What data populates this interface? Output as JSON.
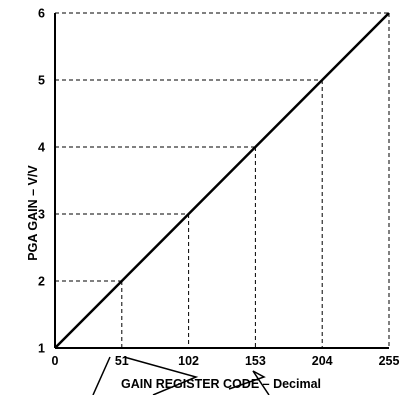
{
  "chart_data": {
    "type": "line",
    "title": "",
    "xlabel": "GAIN REGISTER CODE – Decimal",
    "ylabel": "PGA GAIN – V/V",
    "xlim": [
      0,
      255
    ],
    "ylim": [
      1,
      6
    ],
    "x_ticks": [
      0,
      51,
      102,
      153,
      204,
      255
    ],
    "y_ticks": [
      1,
      2,
      3,
      4,
      5,
      6
    ],
    "grid": "dashed reference lines at marked points",
    "series": [
      {
        "x": [
          0,
          51,
          102,
          153,
          204,
          255
        ],
        "values": [
          1,
          2,
          3,
          4,
          5,
          6
        ],
        "color": "#000000"
      }
    ],
    "reference_points": [
      {
        "x": 51,
        "y": 2
      },
      {
        "x": 102,
        "y": 3
      },
      {
        "x": 153,
        "y": 4
      },
      {
        "x": 204,
        "y": 5
      },
      {
        "x": 255,
        "y": 6
      }
    ]
  }
}
